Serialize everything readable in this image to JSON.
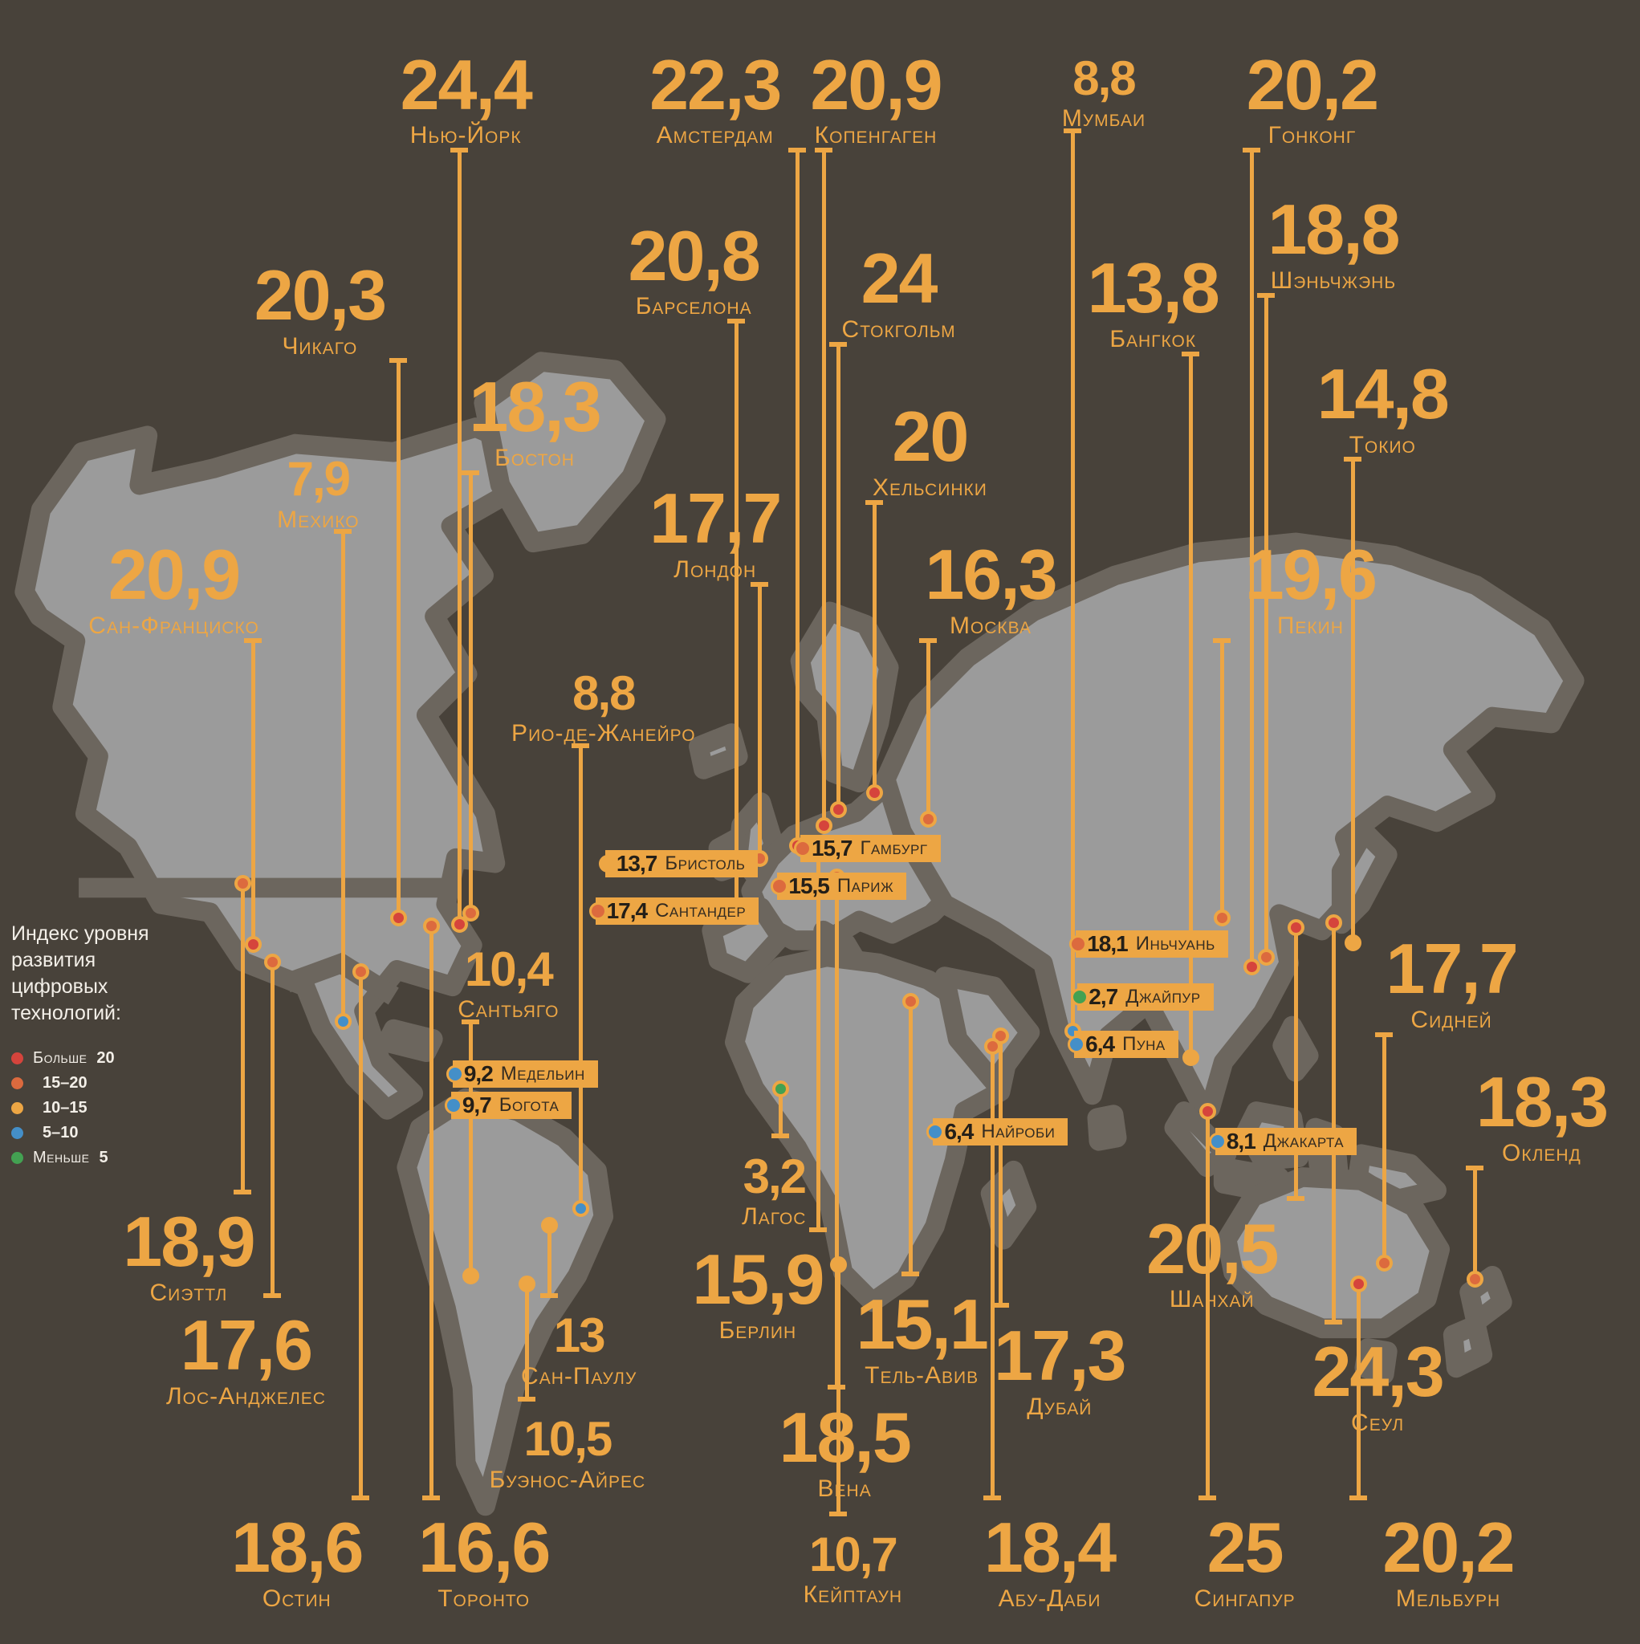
{
  "colors": {
    "background": "#48423a",
    "land": "#9b9b9b",
    "land_border": "#6c665e",
    "accent_amber": "#eda644",
    "badge_text": "#332b21",
    "legend_text": "#f3efe8",
    "category_red": "#d5443c",
    "category_orange": "#dc6a3e",
    "category_amber": "#eda644",
    "category_blue": "#448fc8",
    "category_green": "#43a152"
  },
  "legend": {
    "title": "Индекс уровня\nразвития\nцифровых\nтехнологий:",
    "items": [
      {
        "prefix": "Больше ",
        "bold": "20",
        "cat": "red"
      },
      {
        "prefix": "",
        "bold": "15–20",
        "cat": "orange"
      },
      {
        "prefix": "",
        "bold": "10–15",
        "cat": "amber"
      },
      {
        "prefix": "",
        "bold": "5–10",
        "cat": "blue"
      },
      {
        "prefix": "Меньше ",
        "bold": "5",
        "cat": "green"
      }
    ]
  },
  "chart_data": {
    "type": "map",
    "title": "Индекс уровня развития цифровых технологий",
    "legend_categories": {
      "red": "Больше 20",
      "orange": "15–20",
      "amber": "10–15",
      "blue": "5–10",
      "green": "Меньше 5"
    },
    "cities": [
      {
        "name": "Нью-Йорк",
        "value": "24,4",
        "value_num": 24.4,
        "cat": "red",
        "style": "callout",
        "placement": "above",
        "size": "lg",
        "label": {
          "x": 28.4,
          "y": 3.2
        },
        "dot": {
          "x": 28.0,
          "y": 56.2
        }
      },
      {
        "name": "Амстердам",
        "value": "22,3",
        "value_num": 22.3,
        "cat": "red",
        "style": "callout",
        "placement": "above",
        "size": "lg",
        "label": {
          "x": 43.6,
          "y": 3.2
        },
        "dot": {
          "x": 48.6,
          "y": 51.4
        }
      },
      {
        "name": "Копенгаген",
        "value": "20,9",
        "value_num": 20.9,
        "cat": "red",
        "style": "callout",
        "placement": "above",
        "size": "lg",
        "label": {
          "x": 53.4,
          "y": 3.2
        },
        "dot": {
          "x": 50.2,
          "y": 50.2
        }
      },
      {
        "name": "Мумбаи",
        "value": "8,8",
        "value_num": 8.8,
        "cat": "blue",
        "style": "callout",
        "placement": "above",
        "size": "sm",
        "label": {
          "x": 67.3,
          "y": 3.4
        },
        "dot": {
          "x": 65.4,
          "y": 62.7
        }
      },
      {
        "name": "Гонконг",
        "value": "20,2",
        "value_num": 20.2,
        "cat": "red",
        "style": "callout",
        "placement": "above",
        "size": "lg",
        "label": {
          "x": 80.0,
          "y": 3.2
        },
        "dot": {
          "x": 76.3,
          "y": 58.8
        }
      },
      {
        "name": "Чикаго",
        "value": "20,3",
        "value_num": 20.3,
        "cat": "red",
        "style": "callout",
        "placement": "above",
        "size": "lg",
        "label": {
          "x": 19.5,
          "y": 16.0
        },
        "dot": {
          "x": 24.3,
          "y": 55.8
        }
      },
      {
        "name": "Барселона",
        "value": "20,8",
        "value_num": 20.8,
        "cat": "red",
        "style": "callout",
        "placement": "above",
        "size": "lg",
        "label": {
          "x": 42.3,
          "y": 13.6
        },
        "dot": {
          "x": 44.9,
          "y": 55.4
        }
      },
      {
        "name": "Стокгольм",
        "value": "24",
        "value_num": 24,
        "cat": "red",
        "style": "callout",
        "placement": "above",
        "size": "lg",
        "label": {
          "x": 54.8,
          "y": 15.0
        },
        "dot": {
          "x": 51.1,
          "y": 49.2
        }
      },
      {
        "name": "Бангкок",
        "value": "13,8",
        "value_num": 13.8,
        "cat": "amber",
        "style": "callout",
        "placement": "above",
        "size": "lg",
        "label": {
          "x": 70.3,
          "y": 15.6
        },
        "dot": {
          "x": 72.6,
          "y": 64.3
        }
      },
      {
        "name": "Шэньчжэнь",
        "value": "18,8",
        "value_num": 18.8,
        "cat": "orange",
        "style": "callout",
        "placement": "above",
        "size": "lg",
        "label": {
          "x": 81.3,
          "y": 12.0
        },
        "dot": {
          "x": 77.2,
          "y": 58.2
        }
      },
      {
        "name": "Бостон",
        "value": "18,3",
        "value_num": 18.3,
        "cat": "orange",
        "style": "callout",
        "placement": "above",
        "size": "lg",
        "label": {
          "x": 32.6,
          "y": 22.8
        },
        "dot": {
          "x": 28.7,
          "y": 55.5
        }
      },
      {
        "name": "Хельсинки",
        "value": "20",
        "value_num": 20,
        "cat": "red",
        "style": "callout",
        "placement": "above",
        "size": "lg",
        "label": {
          "x": 56.7,
          "y": 24.6
        },
        "dot": {
          "x": 53.3,
          "y": 48.2
        }
      },
      {
        "name": "Токио",
        "value": "14,8",
        "value_num": 14.8,
        "cat": "amber",
        "style": "callout",
        "placement": "above",
        "size": "lg",
        "label": {
          "x": 84.3,
          "y": 22.0
        },
        "dot": {
          "x": 82.5,
          "y": 57.3
        }
      },
      {
        "name": "Мехико",
        "value": "7,9",
        "value_num": 7.9,
        "cat": "blue",
        "style": "callout",
        "placement": "above",
        "size": "sm",
        "label": {
          "x": 19.4,
          "y": 27.8
        },
        "dot": {
          "x": 20.9,
          "y": 62.1
        }
      },
      {
        "name": "Лондон",
        "value": "17,7",
        "value_num": 17.7,
        "cat": "orange",
        "style": "callout",
        "placement": "above",
        "size": "lg",
        "label": {
          "x": 43.6,
          "y": 29.6
        },
        "dot": {
          "x": 46.3,
          "y": 52.2
        }
      },
      {
        "name": "Москва",
        "value": "16,3",
        "value_num": 16.3,
        "cat": "orange",
        "style": "callout",
        "placement": "above",
        "size": "lg",
        "label": {
          "x": 60.4,
          "y": 33.0
        },
        "dot": {
          "x": 56.6,
          "y": 49.8
        }
      },
      {
        "name": "Сан-Франциско",
        "value": "20,9",
        "value_num": 20.9,
        "cat": "red",
        "style": "callout",
        "placement": "above",
        "size": "lg",
        "label": {
          "x": 10.6,
          "y": 33.0
        },
        "dot": {
          "x": 15.4,
          "y": 57.4
        }
      },
      {
        "name": "Пекин",
        "value": "19,6",
        "value_num": 19.6,
        "cat": "orange",
        "style": "callout",
        "placement": "above",
        "size": "lg",
        "label": {
          "x": 79.9,
          "y": 33.0
        },
        "dot": {
          "x": 74.5,
          "y": 55.8
        }
      },
      {
        "name": "Рио-де-Жанейро",
        "value": "8,8",
        "value_num": 8.8,
        "cat": "blue",
        "style": "callout",
        "placement": "above",
        "size": "sm",
        "label": {
          "x": 36.8,
          "y": 40.8
        },
        "dot": {
          "x": 35.4,
          "y": 73.5
        }
      },
      {
        "name": "Сантьяго",
        "value": "10,4",
        "value_num": 10.4,
        "cat": "amber",
        "style": "callout",
        "placement": "above",
        "size": "sm",
        "label": {
          "x": 31.0,
          "y": 57.6
        },
        "dot": {
          "x": 28.7,
          "y": 77.6
        }
      },
      {
        "name": "Сидней",
        "value": "17,7",
        "value_num": 17.7,
        "cat": "orange",
        "style": "callout",
        "placement": "above",
        "size": "lg",
        "label": {
          "x": 88.5,
          "y": 57.0
        },
        "dot": {
          "x": 84.4,
          "y": 76.8
        }
      },
      {
        "name": "Окленд",
        "value": "18,3",
        "value_num": 18.3,
        "cat": "orange",
        "style": "callout",
        "placement": "above",
        "size": "lg",
        "label": {
          "x": 94.0,
          "y": 65.1
        },
        "dot": {
          "x": 89.9,
          "y": 77.8
        }
      },
      {
        "name": "Сиэттл",
        "value": "18,9",
        "value_num": 18.9,
        "cat": "orange",
        "style": "callout",
        "placement": "below",
        "size": "lg",
        "label": {
          "x": 11.5,
          "y": 73.6
        },
        "dot": {
          "x": 14.8,
          "y": 53.7
        }
      },
      {
        "name": "Лос-Анджелес",
        "value": "17,6",
        "value_num": 17.6,
        "cat": "orange",
        "style": "callout",
        "placement": "below",
        "size": "lg",
        "label": {
          "x": 15.0,
          "y": 79.9
        },
        "dot": {
          "x": 16.6,
          "y": 58.5
        }
      },
      {
        "name": "Остин",
        "value": "18,6",
        "value_num": 18.6,
        "cat": "orange",
        "style": "callout",
        "placement": "below",
        "size": "lg",
        "label": {
          "x": 18.1,
          "y": 92.2
        },
        "dot": {
          "x": 22.0,
          "y": 59.1
        }
      },
      {
        "name": "Торонто",
        "value": "16,6",
        "value_num": 16.6,
        "cat": "orange",
        "style": "callout",
        "placement": "below",
        "size": "lg",
        "label": {
          "x": 29.5,
          "y": 92.2
        },
        "dot": {
          "x": 26.3,
          "y": 56.3
        }
      },
      {
        "name": "Сан-Паулу",
        "value": "13",
        "value_num": 13,
        "cat": "amber",
        "style": "callout",
        "placement": "below",
        "size": "sm",
        "label": {
          "x": 35.3,
          "y": 79.9
        },
        "dot": {
          "x": 33.5,
          "y": 74.5
        }
      },
      {
        "name": "Буэнос-Айрес",
        "value": "10,5",
        "value_num": 10.5,
        "cat": "amber",
        "style": "callout",
        "placement": "below",
        "size": "sm",
        "label": {
          "x": 34.6,
          "y": 86.2
        },
        "dot": {
          "x": 32.1,
          "y": 78.1
        }
      },
      {
        "name": "Берлин",
        "value": "15,9",
        "value_num": 15.9,
        "cat": "orange",
        "style": "callout",
        "placement": "below",
        "size": "lg",
        "label": {
          "x": 46.2,
          "y": 75.9
        },
        "dot": {
          "x": 49.9,
          "y": 51.8
        }
      },
      {
        "name": "Вена",
        "value": "18,5",
        "value_num": 18.5,
        "cat": "orange",
        "style": "callout",
        "placement": "below",
        "size": "lg",
        "label": {
          "x": 51.5,
          "y": 85.5
        },
        "dot": {
          "x": 51.0,
          "y": 53.3
        }
      },
      {
        "name": "Кейптаун",
        "value": "10,7",
        "value_num": 10.7,
        "cat": "amber",
        "style": "callout",
        "placement": "below",
        "size": "sm",
        "label": {
          "x": 52.0,
          "y": 93.2
        },
        "dot": {
          "x": 51.1,
          "y": 76.9
        }
      },
      {
        "name": "Тель-Авив",
        "value": "15,1",
        "value_num": 15.1,
        "cat": "orange",
        "style": "callout",
        "placement": "below",
        "size": "lg",
        "label": {
          "x": 56.2,
          "y": 78.6
        },
        "dot": {
          "x": 55.5,
          "y": 60.9
        }
      },
      {
        "name": "Дубай",
        "value": "17,3",
        "value_num": 17.3,
        "cat": "orange",
        "style": "callout",
        "placement": "below",
        "size": "lg",
        "label": {
          "x": 64.6,
          "y": 80.5
        },
        "dot": {
          "x": 61.0,
          "y": 63.0
        }
      },
      {
        "name": "Абу-Даби",
        "value": "18,4",
        "value_num": 18.4,
        "cat": "orange",
        "style": "callout",
        "placement": "below",
        "size": "lg",
        "label": {
          "x": 64.0,
          "y": 92.2
        },
        "dot": {
          "x": 60.5,
          "y": 63.6
        }
      },
      {
        "name": "Шанхай",
        "value": "20,5",
        "value_num": 20.5,
        "cat": "red",
        "style": "callout",
        "placement": "below",
        "size": "lg",
        "label": {
          "x": 73.9,
          "y": 74.0
        },
        "dot": {
          "x": 79.0,
          "y": 56.4
        }
      },
      {
        "name": "Сеул",
        "value": "24,3",
        "value_num": 24.3,
        "cat": "red",
        "style": "callout",
        "placement": "below",
        "size": "lg",
        "label": {
          "x": 84.0,
          "y": 81.5
        },
        "dot": {
          "x": 81.3,
          "y": 56.1
        }
      },
      {
        "name": "Сингапур",
        "value": "25",
        "value_num": 25,
        "cat": "red",
        "style": "callout",
        "placement": "below",
        "size": "lg",
        "label": {
          "x": 75.9,
          "y": 92.2
        },
        "dot": {
          "x": 73.6,
          "y": 67.6
        }
      },
      {
        "name": "Мельбурн",
        "value": "20,2",
        "value_num": 20.2,
        "cat": "red",
        "style": "callout",
        "placement": "below",
        "size": "lg",
        "label": {
          "x": 88.3,
          "y": 92.2
        },
        "dot": {
          "x": 82.8,
          "y": 78.1
        }
      },
      {
        "name": "Лагос",
        "value": "3,2",
        "value_num": 3.2,
        "cat": "green",
        "style": "callout",
        "placement": "below",
        "size": "sm",
        "label": {
          "x": 47.2,
          "y": 70.2
        },
        "dot": {
          "x": 47.6,
          "y": 66.2
        }
      },
      {
        "name": "Бристоль",
        "value": "13,7",
        "value_num": 13.7,
        "cat": "amber",
        "style": "badge",
        "box": {
          "x": 36.9,
          "y": 51.7
        }
      },
      {
        "name": "Гамбург",
        "value": "15,7",
        "value_num": 15.7,
        "cat": "orange",
        "style": "badge",
        "box": {
          "x": 48.8,
          "y": 50.8
        }
      },
      {
        "name": "Париж",
        "value": "15,5",
        "value_num": 15.5,
        "cat": "orange",
        "style": "badge",
        "box": {
          "x": 47.4,
          "y": 53.1
        }
      },
      {
        "name": "Сантандер",
        "value": "17,4",
        "value_num": 17.4,
        "cat": "orange",
        "style": "badge",
        "box": {
          "x": 36.3,
          "y": 54.6
        }
      },
      {
        "name": "Иньчуань",
        "value": "18,1",
        "value_num": 18.1,
        "cat": "orange",
        "style": "badge",
        "box": {
          "x": 65.6,
          "y": 56.6
        }
      },
      {
        "name": "Джайпур",
        "value": "2,7",
        "value_num": 2.7,
        "cat": "green",
        "style": "badge",
        "box": {
          "x": 65.7,
          "y": 59.8
        }
      },
      {
        "name": "Пуна",
        "value": "6,4",
        "value_num": 6.4,
        "cat": "blue",
        "style": "badge",
        "box": {
          "x": 65.5,
          "y": 62.7
        }
      },
      {
        "name": "Медельин",
        "value": "9,2",
        "value_num": 9.2,
        "cat": "blue",
        "style": "badge",
        "box": {
          "x": 27.6,
          "y": 64.5
        }
      },
      {
        "name": "Богота",
        "value": "9,7",
        "value_num": 9.7,
        "cat": "blue",
        "style": "badge",
        "box": {
          "x": 27.5,
          "y": 66.4
        }
      },
      {
        "name": "Найроби",
        "value": "6,4",
        "value_num": 6.4,
        "cat": "blue",
        "style": "badge",
        "box": {
          "x": 56.9,
          "y": 68.0
        }
      },
      {
        "name": "Джакарта",
        "value": "8,1",
        "value_num": 8.1,
        "cat": "blue",
        "style": "badge",
        "box": {
          "x": 74.1,
          "y": 68.6
        }
      }
    ]
  }
}
